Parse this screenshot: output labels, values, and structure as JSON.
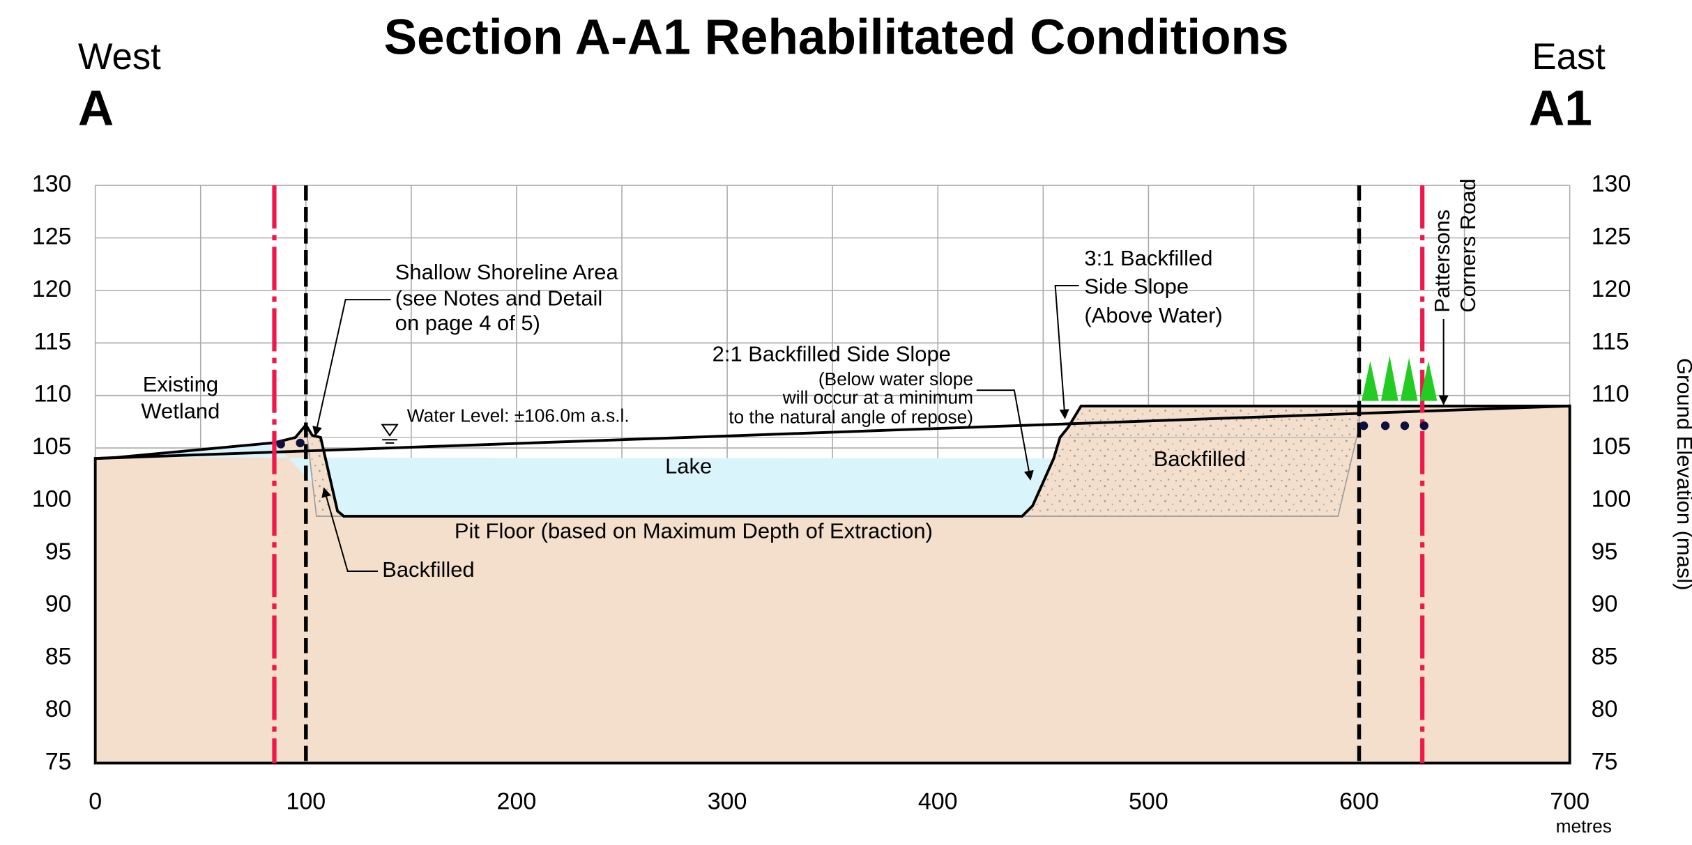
{
  "header": {
    "title": "Section A-A1 Rehabilitated Conditions",
    "west": "West",
    "west_mark": "A",
    "east": "East",
    "east_mark": "A1"
  },
  "axes": {
    "xlim": [
      0,
      700
    ],
    "ylim": [
      75,
      130
    ],
    "xticks": [
      0,
      100,
      200,
      300,
      400,
      500,
      600,
      700
    ],
    "xgrid": [
      0,
      50,
      100,
      150,
      200,
      250,
      300,
      350,
      400,
      450,
      500,
      550,
      600,
      650,
      700
    ],
    "yticks": [
      75,
      80,
      85,
      90,
      95,
      100,
      105,
      110,
      115,
      120,
      125,
      130
    ],
    "x_unit": "metres",
    "y_label": "Ground Elevation (masl)"
  },
  "profile": {
    "x": [
      0,
      10,
      85,
      95,
      100,
      103,
      107,
      115,
      118,
      440,
      445,
      455,
      458,
      462,
      468,
      600,
      700
    ],
    "elevation": [
      104,
      104.1,
      105.5,
      106,
      107.2,
      106.2,
      106,
      99,
      98.5,
      98.5,
      99.5,
      104,
      106,
      107,
      109,
      109,
      109
    ],
    "water_level": 106,
    "ground_color": "#f3dfcb",
    "water_color": "#daf4fb"
  },
  "boundaries": {
    "property_lines": [
      85,
      630
    ],
    "property_color": "#f0184a",
    "limit_lines": [
      100,
      600
    ],
    "limit_color": "#000000"
  },
  "annotations": {
    "wetland": [
      "Existing",
      "Wetland"
    ],
    "shoreline": [
      "Shallow Shoreline Area",
      "(see Notes and Detail",
      "on page 4 of 5)"
    ],
    "water_level": "Water Level: ±106.0m a.s.l.",
    "lake": "Lake",
    "pit_floor": "Pit Floor (based on Maximum Depth of Extraction)",
    "backfilled_left": "Backfilled",
    "backfilled_right": "Backfilled",
    "slope_2_1": [
      "2:1 Backfilled Side Slope",
      "(Below water slope",
      "will occur at a minimum",
      "to the natural angle of repose)"
    ],
    "slope_3_1": [
      "3:1 Backfilled",
      "Side Slope",
      "(Above Water)"
    ],
    "road": [
      "Pattersons",
      "Corners Road"
    ]
  }
}
